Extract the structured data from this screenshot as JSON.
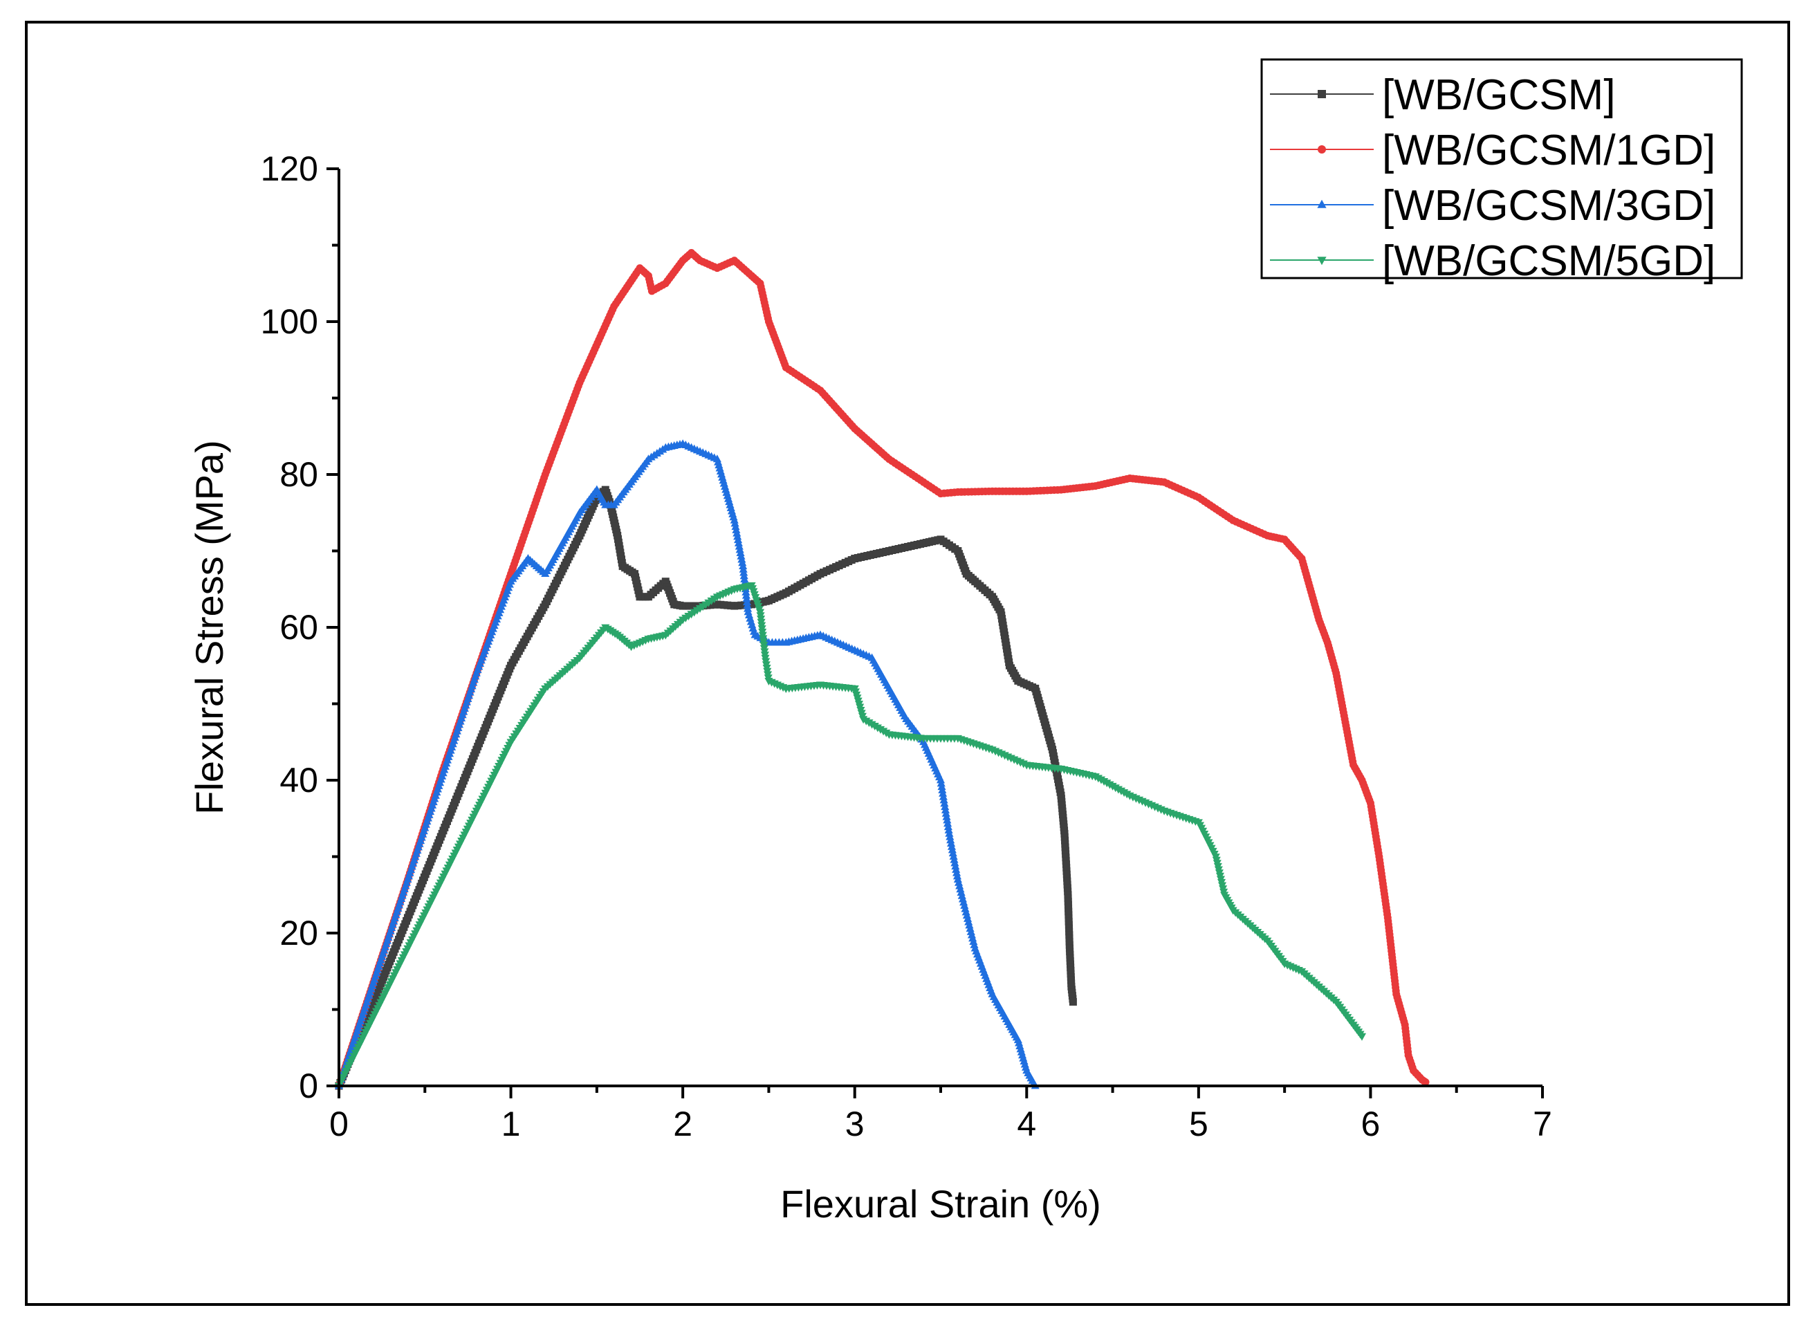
{
  "chart_data": {
    "type": "line",
    "title": "",
    "xlabel": "Flexural Strain (%)",
    "ylabel": "Flexural Stress (MPa)",
    "xlim": [
      0,
      7
    ],
    "ylim": [
      0,
      120
    ],
    "xticks": [
      "0",
      "1",
      "2",
      "3",
      "4",
      "5",
      "6",
      "7"
    ],
    "yticks": [
      "0",
      "20",
      "40",
      "60",
      "80",
      "100",
      "120"
    ],
    "grid": false,
    "legend_position": "top-right",
    "series": [
      {
        "name": "[WB/GCSM]",
        "color": "#3f3f3f",
        "marker": "square",
        "x": [
          0,
          0.2,
          0.4,
          0.6,
          0.8,
          1.0,
          1.2,
          1.4,
          1.5,
          1.55,
          1.58,
          1.62,
          1.65,
          1.72,
          1.75,
          1.8,
          1.9,
          1.95,
          2.0,
          2.1,
          2.2,
          2.3,
          2.4,
          2.5,
          2.6,
          2.8,
          3.0,
          3.2,
          3.4,
          3.5,
          3.6,
          3.65,
          3.7,
          3.8,
          3.85,
          3.9,
          3.95,
          4.05,
          4.1,
          4.15,
          4.2,
          4.22,
          4.24,
          4.25,
          4.26,
          4.27
        ],
        "y": [
          0,
          11,
          22,
          33,
          44,
          55,
          63,
          72,
          77,
          78,
          76,
          72,
          68,
          67,
          64,
          64,
          66,
          63,
          62.8,
          62.8,
          63,
          62.8,
          63,
          63.5,
          64.5,
          67,
          69,
          70,
          71,
          71.5,
          70,
          67,
          66,
          64,
          62,
          55,
          53,
          52,
          48,
          44,
          38,
          33,
          25,
          18,
          13,
          11
        ]
      },
      {
        "name": "[WB/GCSM/1GD]",
        "color": "#e8393a",
        "marker": "circle",
        "x": [
          0,
          0.2,
          0.4,
          0.6,
          0.8,
          1.0,
          1.2,
          1.4,
          1.6,
          1.75,
          1.8,
          1.82,
          1.9,
          2.0,
          2.05,
          2.1,
          2.2,
          2.25,
          2.3,
          2.4,
          2.45,
          2.5,
          2.55,
          2.6,
          2.8,
          3.0,
          3.2,
          3.4,
          3.5,
          3.6,
          3.8,
          4.0,
          4.2,
          4.4,
          4.6,
          4.8,
          5.0,
          5.2,
          5.4,
          5.5,
          5.6,
          5.65,
          5.7,
          5.75,
          5.8,
          5.85,
          5.9,
          5.95,
          6.0,
          6.05,
          6.1,
          6.15,
          6.2,
          6.22,
          6.25,
          6.3,
          6.32
        ],
        "y": [
          0,
          13.5,
          27,
          41,
          54,
          67,
          80,
          92,
          102,
          107,
          106,
          104,
          105,
          108,
          109,
          108,
          107,
          107.5,
          108,
          106,
          105,
          100,
          97,
          94,
          91,
          86,
          82,
          79,
          77.5,
          77.7,
          77.8,
          77.8,
          78,
          78.5,
          79.5,
          79,
          77,
          74,
          72,
          71.5,
          69,
          65,
          61,
          58,
          54,
          48,
          42,
          40,
          37,
          30,
          22,
          12,
          8,
          4,
          2,
          0.8,
          0.5
        ]
      },
      {
        "name": "[WB/GCSM/3GD]",
        "color": "#1f6fe0",
        "marker": "triangle-up",
        "x": [
          0,
          0.2,
          0.4,
          0.6,
          0.8,
          1.0,
          1.1,
          1.15,
          1.2,
          1.3,
          1.4,
          1.5,
          1.55,
          1.6,
          1.7,
          1.8,
          1.9,
          2.0,
          2.1,
          2.2,
          2.25,
          2.3,
          2.35,
          2.38,
          2.42,
          2.5,
          2.6,
          2.7,
          2.8,
          2.9,
          3.0,
          3.1,
          3.2,
          3.3,
          3.4,
          3.5,
          3.55,
          3.6,
          3.7,
          3.8,
          3.9,
          3.95,
          4.0,
          4.05
        ],
        "y": [
          0,
          13.5,
          27,
          40.5,
          54,
          66,
          69,
          68,
          67,
          71,
          75,
          78,
          76,
          76,
          79,
          82,
          83.5,
          84,
          83,
          82,
          78,
          74,
          68,
          62,
          59,
          58,
          58,
          58.5,
          59,
          58,
          57,
          56,
          52,
          48,
          45,
          40,
          33,
          27,
          18,
          12,
          8,
          6,
          2,
          0
        ]
      },
      {
        "name": "[WB/GCSM/5GD]",
        "color": "#2aa66a",
        "marker": "triangle-down",
        "x": [
          0,
          0.2,
          0.4,
          0.6,
          0.8,
          1.0,
          1.2,
          1.4,
          1.55,
          1.62,
          1.7,
          1.8,
          1.9,
          2.0,
          2.1,
          2.2,
          2.3,
          2.4,
          2.45,
          2.48,
          2.5,
          2.6,
          2.8,
          3.0,
          3.05,
          3.2,
          3.4,
          3.6,
          3.8,
          4.0,
          4.2,
          4.4,
          4.6,
          4.8,
          5.0,
          5.1,
          5.15,
          5.2,
          5.3,
          5.4,
          5.5,
          5.6,
          5.7,
          5.8,
          5.9,
          5.95
        ],
        "y": [
          0,
          9,
          18,
          27,
          36,
          45,
          52,
          56,
          60,
          59,
          57.5,
          58.5,
          59,
          61,
          62.5,
          64,
          65,
          65.5,
          62,
          56,
          53,
          52,
          52.5,
          52,
          48,
          46,
          45.5,
          45.5,
          44,
          42,
          41.5,
          40.5,
          38,
          36,
          34.5,
          30,
          25,
          23,
          21,
          19,
          16,
          15,
          13,
          11,
          8,
          6.5
        ]
      }
    ]
  }
}
